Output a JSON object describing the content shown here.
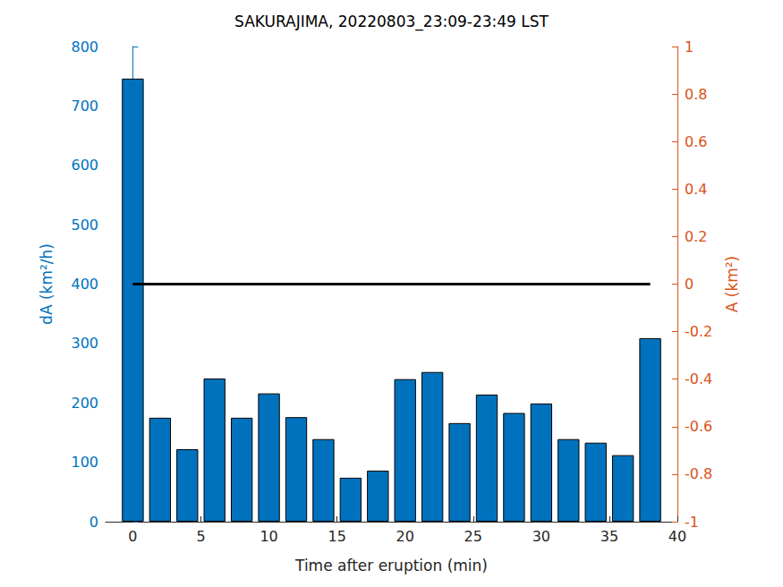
{
  "chart_data": {
    "type": "bar",
    "title": "SAKURAJIMA, 20220803_23:09-23:49 LST",
    "x_label": "Time after eruption (min)",
    "y_label": "dA (km²/h)",
    "y2_label": "A (km²)",
    "x": [
      0,
      2,
      4,
      6,
      8,
      10,
      12,
      14,
      16,
      18,
      20,
      22,
      24,
      26,
      28,
      30,
      32,
      34,
      36,
      38
    ],
    "series": [
      {
        "type": "bar",
        "color": "#0072BD",
        "values": [
          746,
          175,
          122,
          241,
          175,
          216,
          176,
          139,
          74,
          86,
          240,
          252,
          166,
          214,
          183,
          199,
          139,
          133,
          112,
          309
        ]
      },
      {
        "type": "line",
        "axis": "y2",
        "color": "#000000",
        "marker": "none",
        "line_style": "solid",
        "values": [
          0,
          0,
          0,
          0,
          0,
          0,
          0,
          0,
          0,
          0,
          0,
          0,
          0,
          0,
          0,
          0,
          0,
          0,
          0,
          0
        ]
      }
    ],
    "xlim": [
      -2,
      40
    ],
    "xticks": [
      0,
      5,
      10,
      15,
      20,
      25,
      30,
      35,
      40
    ],
    "ylim": [
      0,
      800
    ],
    "yticks": [
      0,
      100,
      200,
      300,
      400,
      500,
      600,
      700,
      800
    ],
    "y2lim": [
      -1,
      1
    ],
    "y2ticks": [
      -1,
      -0.8,
      -0.6,
      -0.4,
      -0.2,
      0,
      0.2,
      0.4,
      0.6,
      0.8,
      1
    ],
    "grid": false
  }
}
